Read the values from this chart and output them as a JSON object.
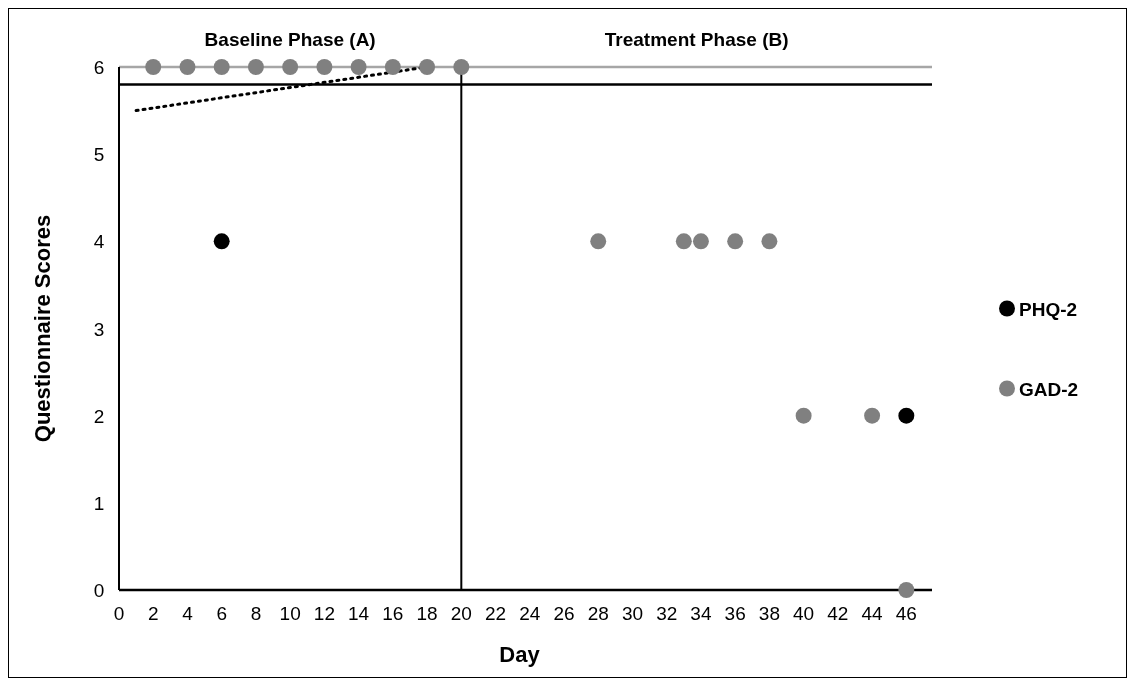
{
  "chart_data": {
    "type": "scatter",
    "xlabel": "Day",
    "ylabel": "Questionnaire Scores",
    "xlim": [
      0,
      47.5
    ],
    "ylim": [
      0,
      6
    ],
    "xticks": [
      0,
      2,
      4,
      6,
      8,
      10,
      12,
      14,
      16,
      18,
      20,
      22,
      24,
      26,
      28,
      30,
      32,
      34,
      36,
      38,
      40,
      42,
      44,
      46
    ],
    "yticks": [
      0,
      1,
      2,
      3,
      4,
      5,
      6
    ],
    "grid": false,
    "legend": "right",
    "marker": "circle",
    "series": [
      {
        "name": "PHQ-2",
        "color": "#000000",
        "x": [
          6,
          46
        ],
        "values": [
          4,
          2
        ]
      },
      {
        "name": "GAD-2",
        "color": "#808080",
        "x": [
          2,
          4,
          6,
          8,
          10,
          12,
          14,
          16,
          18,
          20,
          28,
          33,
          34,
          36,
          38,
          40,
          44,
          46
        ],
        "values": [
          6,
          6,
          6,
          6,
          6,
          6,
          6,
          6,
          6,
          6,
          4,
          4,
          4,
          4,
          4,
          2,
          2,
          0
        ]
      },
      {
        "type": "line",
        "color": "#000000",
        "line_style": "dotted",
        "marker": "none",
        "x": [
          1,
          18
        ],
        "values": [
          5.5,
          6
        ]
      }
    ],
    "ref_lines": [
      {
        "axis": "y",
        "value": 6,
        "color": "#a6a6a6"
      },
      {
        "axis": "y",
        "value": 5.8,
        "color": "#000000"
      },
      {
        "axis": "x",
        "value": 20,
        "color": "#000000"
      }
    ],
    "annotations": [
      "Baseline Phase (A)",
      "Treatment Phase (B)"
    ]
  }
}
